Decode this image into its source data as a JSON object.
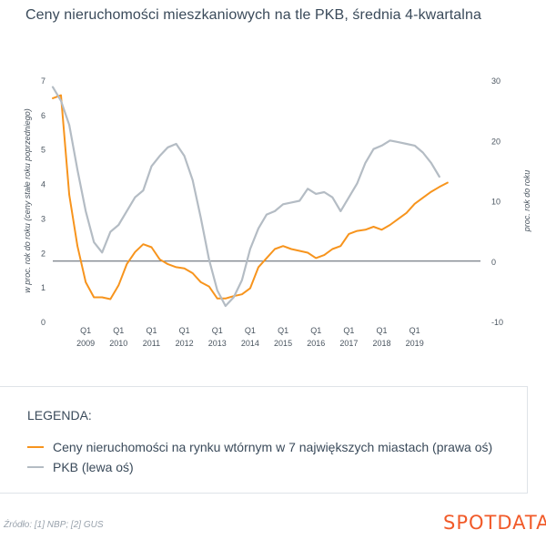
{
  "header": {
    "title": "Ceny nieruchomości mieszkaniowych na tle PKB, średnia 4-kwartalna"
  },
  "legend": {
    "title": "LEGENDA:",
    "items": [
      {
        "label": "Ceny nieruchomości na rynku wtórnym w 7 największych miastach (prawa oś)",
        "color": "#f7941d"
      },
      {
        "label": "PKB (lewa oś)",
        "color": "#b4bcc4"
      }
    ]
  },
  "footer": {
    "source": "Źródło: [1] NBP; [2] GUS",
    "logo": "SPOTDATA"
  },
  "chart_data": {
    "type": "line",
    "ylabel": "w proc. rok do roku (ceny stałe roku poprzedniego)",
    "y2label": "proc. rok do roku",
    "ylim": [
      0,
      7
    ],
    "y2lim": [
      -10,
      30
    ],
    "yticks": [
      "0",
      "1",
      "2",
      "3",
      "4",
      "5",
      "6",
      "7"
    ],
    "y2ticks": [
      "-10",
      "0",
      "10",
      "20",
      "30"
    ],
    "x_quarter_label": "Q1",
    "years": [
      "2009",
      "2010",
      "2011",
      "2012",
      "2013",
      "2014",
      "2015",
      "2016",
      "2017",
      "2018",
      "2019"
    ],
    "x_range": [
      2008.0,
      2021.0
    ],
    "reference_line": {
      "axis": "right",
      "value": 0
    },
    "series": [
      {
        "name": "Ceny nieruchomości na rynku wtórnym w 7 największych miastach (prawa oś)",
        "axis": "right",
        "color": "#f7941d",
        "points": [
          [
            2008.0,
            27
          ],
          [
            2008.25,
            27.5
          ],
          [
            2008.5,
            11
          ],
          [
            2008.75,
            2.5
          ],
          [
            2009.0,
            -3.5
          ],
          [
            2009.25,
            -6
          ],
          [
            2009.5,
            -6
          ],
          [
            2009.75,
            -6.3
          ],
          [
            2010.0,
            -4
          ],
          [
            2010.25,
            -0.5
          ],
          [
            2010.5,
            1.5
          ],
          [
            2010.75,
            2.8
          ],
          [
            2011.0,
            2.3
          ],
          [
            2011.25,
            0.3
          ],
          [
            2011.5,
            -0.5
          ],
          [
            2011.75,
            -1
          ],
          [
            2012.0,
            -1.2
          ],
          [
            2012.25,
            -2
          ],
          [
            2012.5,
            -3.5
          ],
          [
            2012.75,
            -4.2
          ],
          [
            2013.0,
            -6.2
          ],
          [
            2013.25,
            -6.2
          ],
          [
            2013.5,
            -5.8
          ],
          [
            2013.75,
            -5.5
          ],
          [
            2014.0,
            -4.5
          ],
          [
            2014.25,
            -1
          ],
          [
            2014.5,
            0.5
          ],
          [
            2014.75,
            2
          ],
          [
            2015.0,
            2.5
          ],
          [
            2015.25,
            2
          ],
          [
            2015.5,
            1.7
          ],
          [
            2015.75,
            1.4
          ],
          [
            2016.0,
            0.5
          ],
          [
            2016.25,
            1
          ],
          [
            2016.5,
            2
          ],
          [
            2016.75,
            2.5
          ],
          [
            2017.0,
            4.5
          ],
          [
            2017.25,
            5
          ],
          [
            2017.5,
            5.2
          ],
          [
            2017.75,
            5.7
          ],
          [
            2018.0,
            5.2
          ],
          [
            2018.25,
            6
          ],
          [
            2018.5,
            7
          ],
          [
            2018.75,
            8
          ],
          [
            2019.0,
            9.5
          ],
          [
            2019.25,
            10.5
          ],
          [
            2019.5,
            11.5
          ],
          [
            2019.75,
            12.3
          ],
          [
            2020.0,
            13
          ]
        ]
      },
      {
        "name": "PKB (lewa oś)",
        "axis": "left",
        "color": "#b4bcc4",
        "points": [
          [
            2008.0,
            6.8
          ],
          [
            2008.25,
            6.4
          ],
          [
            2008.5,
            5.7
          ],
          [
            2008.75,
            4.4
          ],
          [
            2009.0,
            3.2
          ],
          [
            2009.25,
            2.3
          ],
          [
            2009.5,
            2.0
          ],
          [
            2009.75,
            2.6
          ],
          [
            2010.0,
            2.8
          ],
          [
            2010.25,
            3.2
          ],
          [
            2010.5,
            3.6
          ],
          [
            2010.75,
            3.8
          ],
          [
            2011.0,
            4.5
          ],
          [
            2011.25,
            4.8
          ],
          [
            2011.5,
            5.05
          ],
          [
            2011.75,
            5.15
          ],
          [
            2012.0,
            4.8
          ],
          [
            2012.25,
            4.1
          ],
          [
            2012.5,
            3.0
          ],
          [
            2012.75,
            1.8
          ],
          [
            2013.0,
            0.9
          ],
          [
            2013.25,
            0.45
          ],
          [
            2013.5,
            0.7
          ],
          [
            2013.75,
            1.2
          ],
          [
            2014.0,
            2.1
          ],
          [
            2014.25,
            2.7
          ],
          [
            2014.5,
            3.1
          ],
          [
            2014.75,
            3.2
          ],
          [
            2015.0,
            3.4
          ],
          [
            2015.25,
            3.45
          ],
          [
            2015.5,
            3.5
          ],
          [
            2015.75,
            3.85
          ],
          [
            2016.0,
            3.7
          ],
          [
            2016.25,
            3.75
          ],
          [
            2016.5,
            3.6
          ],
          [
            2016.75,
            3.2
          ],
          [
            2017.0,
            3.6
          ],
          [
            2017.25,
            4.0
          ],
          [
            2017.5,
            4.6
          ],
          [
            2017.75,
            5.0
          ],
          [
            2018.0,
            5.1
          ],
          [
            2018.25,
            5.25
          ],
          [
            2018.5,
            5.2
          ],
          [
            2018.75,
            5.15
          ],
          [
            2019.0,
            5.1
          ],
          [
            2019.25,
            4.9
          ],
          [
            2019.5,
            4.6
          ],
          [
            2019.75,
            4.2
          ]
        ]
      }
    ]
  }
}
